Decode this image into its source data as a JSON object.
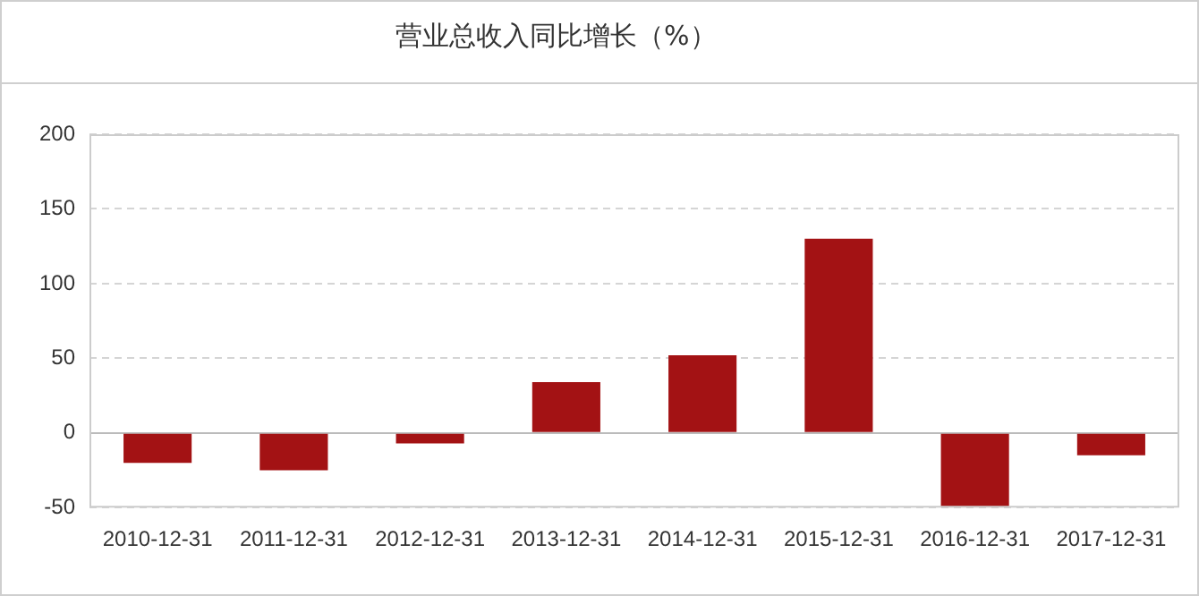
{
  "chart_data": {
    "type": "bar",
    "title": "营业总收入同比增长（%）",
    "categories": [
      "2010-12-31",
      "2011-12-31",
      "2012-12-31",
      "2013-12-31",
      "2014-12-31",
      "2015-12-31",
      "2016-12-31",
      "2017-12-31"
    ],
    "values": [
      -20,
      -25,
      -7,
      34,
      52,
      130,
      -50,
      -15
    ],
    "color": "#a31214",
    "ylim": [
      -50,
      200
    ],
    "yticks": [
      -50,
      0,
      50,
      100,
      150,
      200
    ],
    "grid": "y",
    "legend": false
  }
}
